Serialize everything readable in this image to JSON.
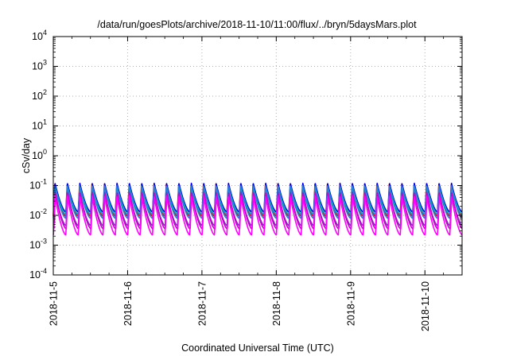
{
  "chart_data": {
    "type": "line",
    "title": "/data/run/goesPlots/archive/2018-11-10/11:00/flux/../bryn/5daysMars.plot",
    "xlabel": "Coordinated Universal Time (UTC)",
    "ylabel": "cSv/day",
    "y_scale": "log",
    "ylim": [
      0.0001,
      10000
    ],
    "y_ticks": [
      {
        "base": "10",
        "exp": "-4"
      },
      {
        "base": "10",
        "exp": "-3"
      },
      {
        "base": "10",
        "exp": "-2"
      },
      {
        "base": "10",
        "exp": "-1"
      },
      {
        "base": "10",
        "exp": "0"
      },
      {
        "base": "10",
        "exp": "1"
      },
      {
        "base": "10",
        "exp": "2"
      },
      {
        "base": "10",
        "exp": "3"
      },
      {
        "base": "10",
        "exp": "4"
      }
    ],
    "xlim": [
      "2018-11-05",
      "2018-11-10 12:00"
    ],
    "x_ticks": [
      "2018-11-5",
      "2018-11-6",
      "2018-11-7",
      "2018-11-8",
      "2018-11-9",
      "2018-11-10"
    ],
    "grid": true,
    "legend": "none",
    "cycles_per_day": 6,
    "series": [
      {
        "color": "#ff0000",
        "peak": 0.11,
        "trough": 0.0095
      },
      {
        "color": "#0000ee",
        "peak": 0.12,
        "trough": 0.013
      },
      {
        "color": "#00b3b3",
        "peak": 0.09,
        "trough": 0.0105
      },
      {
        "color": "#2a7fd4",
        "peak": 0.1,
        "trough": 0.008
      },
      {
        "color": "#7a2fbf",
        "peak": 0.06,
        "trough": 0.0045
      },
      {
        "color": "#cc00cc",
        "peak": 0.055,
        "trough": 0.0035
      },
      {
        "color": "#ff00ff",
        "peak": 0.045,
        "trough": 0.0022
      }
    ]
  }
}
